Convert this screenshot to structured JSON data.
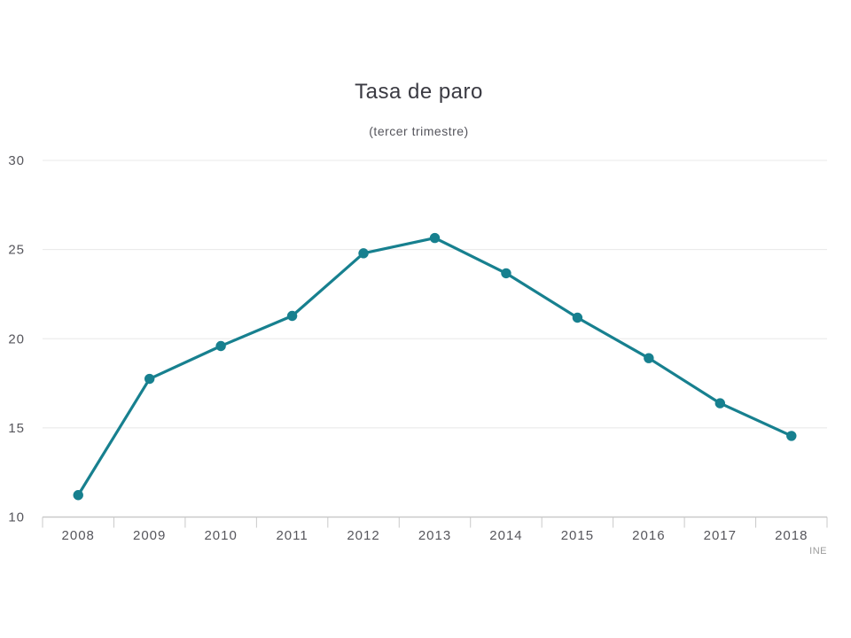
{
  "header": {
    "title": "Tasa de paro",
    "subtitle": "(tercer trimestre)"
  },
  "source": {
    "label": "INE"
  },
  "colors": {
    "line": "#17808f",
    "marker": "#17808f",
    "gridline": "#e8e8e8",
    "axis": "#c9c9c9",
    "tick": "#c9c9c9",
    "tick_label": "#56565c",
    "title": "#3a3a42",
    "subtitle": "#55555c",
    "source": "#9b9b9b",
    "background": "#ffffff"
  },
  "chart_data": {
    "type": "line",
    "title": "Tasa de paro",
    "subtitle": "(tercer trimestre)",
    "categories": [
      "2008",
      "2009",
      "2010",
      "2011",
      "2012",
      "2013",
      "2014",
      "2015",
      "2016",
      "2017",
      "2018"
    ],
    "series": [
      {
        "name": "Tasa de paro (%)",
        "values": [
          11.23,
          17.75,
          19.59,
          21.28,
          24.79,
          25.65,
          23.67,
          21.18,
          18.91,
          16.38,
          14.55
        ]
      }
    ],
    "xlabel": "",
    "ylabel": "",
    "ylim": [
      10,
      30
    ],
    "yticks": [
      10,
      15,
      20,
      25,
      30
    ],
    "grid": true,
    "legend_position": "none",
    "marker": "circle",
    "source": "INE"
  }
}
